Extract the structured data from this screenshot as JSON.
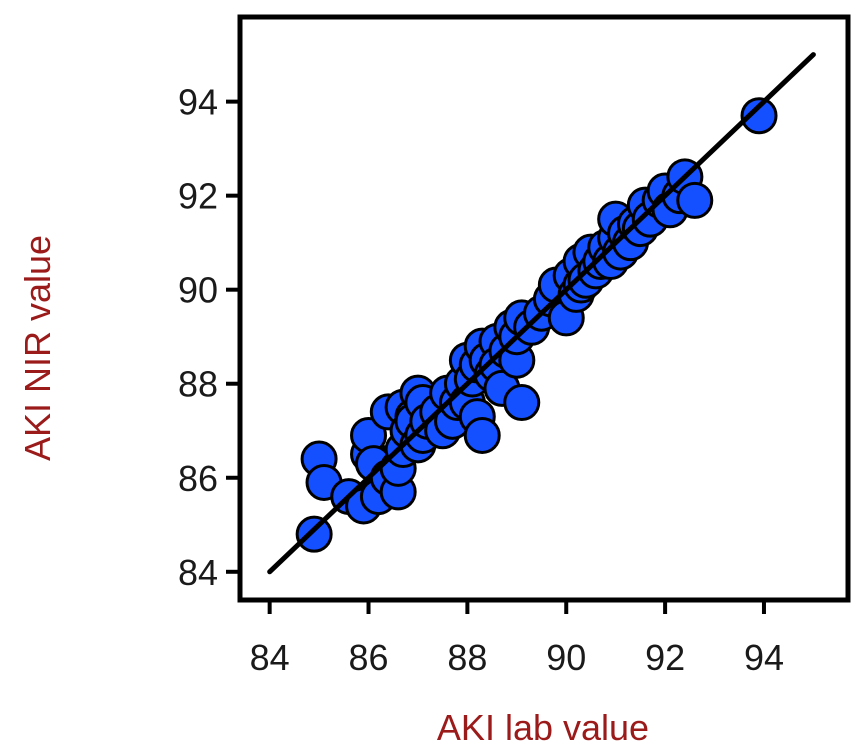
{
  "chart_data": {
    "type": "scatter",
    "xlabel": "AKI lab value",
    "ylabel": "AKI NIR value",
    "xlim": [
      83.4,
      95.7
    ],
    "ylim": [
      83.4,
      95.8
    ],
    "x_ticks": [
      84,
      86,
      88,
      90,
      92,
      94
    ],
    "y_ticks": [
      84,
      86,
      88,
      90,
      92,
      94
    ],
    "reference_line": {
      "from": [
        84,
        84
      ],
      "to": [
        95,
        95
      ]
    },
    "grid": false,
    "colors": {
      "points": "#1450ff",
      "point_outline": "#000000",
      "axis_title": "#9b1b1b",
      "line": "#000000"
    },
    "series": [
      {
        "points": [
          [
            84.9,
            84.8
          ],
          [
            85.0,
            86.4
          ],
          [
            85.1,
            85.9
          ],
          [
            85.6,
            85.6
          ],
          [
            85.9,
            85.4
          ],
          [
            86.0,
            86.5
          ],
          [
            86.0,
            86.9
          ],
          [
            86.1,
            86.3
          ],
          [
            86.2,
            85.6
          ],
          [
            86.4,
            86.0
          ],
          [
            86.4,
            87.4
          ],
          [
            86.6,
            85.7
          ],
          [
            86.6,
            86.2
          ],
          [
            86.7,
            86.6
          ],
          [
            86.7,
            87.5
          ],
          [
            86.8,
            87.0
          ],
          [
            86.9,
            87.3
          ],
          [
            86.9,
            87.2
          ],
          [
            87.0,
            86.7
          ],
          [
            87.0,
            87.8
          ],
          [
            87.1,
            86.9
          ],
          [
            87.1,
            87.6
          ],
          [
            87.2,
            87.2
          ],
          [
            87.4,
            87.4
          ],
          [
            87.5,
            87.0
          ],
          [
            87.6,
            87.8
          ],
          [
            87.7,
            87.2
          ],
          [
            87.8,
            87.6
          ],
          [
            87.9,
            88.0
          ],
          [
            88.0,
            87.6
          ],
          [
            88.0,
            88.5
          ],
          [
            88.1,
            88.1
          ],
          [
            88.2,
            88.4
          ],
          [
            88.2,
            87.3
          ],
          [
            88.3,
            86.9
          ],
          [
            88.3,
            88.8
          ],
          [
            88.4,
            88.5
          ],
          [
            88.5,
            88.2
          ],
          [
            88.6,
            88.9
          ],
          [
            88.6,
            88.4
          ],
          [
            88.7,
            87.9
          ],
          [
            88.8,
            88.7
          ],
          [
            88.9,
            89.2
          ],
          [
            89.0,
            88.5
          ],
          [
            89.0,
            89.0
          ],
          [
            89.1,
            89.4
          ],
          [
            89.1,
            87.6
          ],
          [
            89.3,
            89.2
          ],
          [
            89.5,
            89.5
          ],
          [
            89.7,
            89.8
          ],
          [
            89.8,
            90.1
          ],
          [
            90.0,
            89.4
          ],
          [
            90.1,
            90.3
          ],
          [
            90.2,
            89.9
          ],
          [
            90.3,
            90.1
          ],
          [
            90.3,
            90.6
          ],
          [
            90.4,
            90.2
          ],
          [
            90.5,
            90.8
          ],
          [
            90.6,
            90.4
          ],
          [
            90.7,
            90.6
          ],
          [
            90.8,
            90.9
          ],
          [
            90.9,
            90.6
          ],
          [
            91.0,
            91.1
          ],
          [
            91.0,
            91.5
          ],
          [
            91.1,
            90.8
          ],
          [
            91.2,
            91.2
          ],
          [
            91.3,
            91.0
          ],
          [
            91.4,
            91.4
          ],
          [
            91.5,
            91.3
          ],
          [
            91.6,
            91.8
          ],
          [
            91.7,
            91.5
          ],
          [
            91.9,
            91.9
          ],
          [
            92.0,
            92.1
          ],
          [
            92.1,
            91.7
          ],
          [
            92.3,
            92.0
          ],
          [
            92.4,
            92.4
          ],
          [
            92.6,
            91.9
          ],
          [
            93.9,
            93.7
          ]
        ]
      }
    ]
  }
}
